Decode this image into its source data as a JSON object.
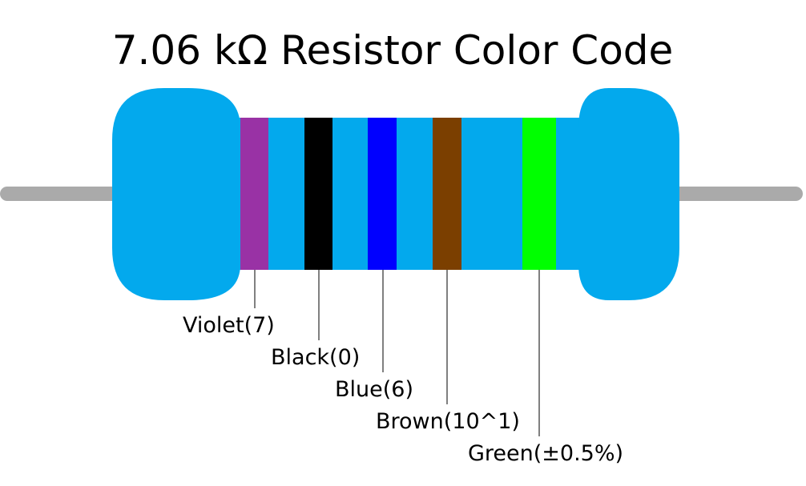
{
  "title": "7.06 kΩ Resistor Color Code",
  "body_color": "#03a9ed",
  "lead_color": "#aaaaaa",
  "bands": [
    {
      "label": "Violet(7)",
      "color": "#9932a5"
    },
    {
      "label": "Black(0)",
      "color": "#000000"
    },
    {
      "label": "Blue(6)",
      "color": "#0000ff"
    },
    {
      "label": "Brown(10^1)",
      "color": "#7b3f00"
    },
    {
      "label": "Green(±0.5%)",
      "color": "#00ff00"
    }
  ]
}
